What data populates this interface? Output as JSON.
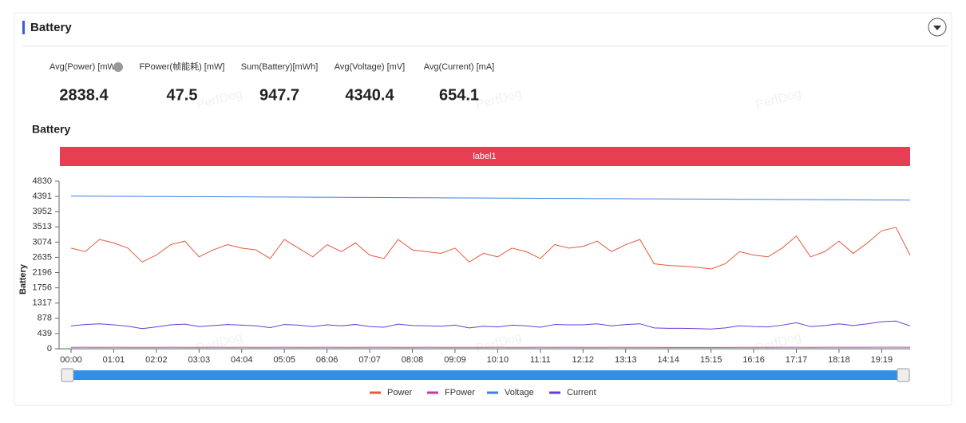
{
  "header": {
    "title": "Battery"
  },
  "stats": [
    {
      "label": "Avg(Power) [mW]",
      "value": "2838.4"
    },
    {
      "label": "FPower(帧能耗) [mW]",
      "value": "47.5"
    },
    {
      "label": "Sum(Battery)[mWh]",
      "value": "947.7"
    },
    {
      "label": "Avg(Voltage) [mV]",
      "value": "4340.4"
    },
    {
      "label": "Avg(Current) [mA]",
      "value": "654.1"
    }
  ],
  "watermark": "PerfDog",
  "chart_data": {
    "type": "line",
    "title": "Battery",
    "band_label": "label1",
    "y_label": "Battery",
    "categories": [
      "00:00",
      null,
      null,
      "01:01",
      null,
      null,
      "02:02",
      null,
      null,
      "03:03",
      null,
      null,
      "04:04",
      null,
      null,
      "05:05",
      null,
      null,
      "06:06",
      null,
      null,
      "07:07",
      null,
      null,
      "08:08",
      null,
      null,
      "09:09",
      null,
      null,
      "10:10",
      null,
      null,
      "11:11",
      null,
      null,
      "12:12",
      null,
      null,
      "13:13",
      null,
      null,
      "14:14",
      null,
      null,
      "15:15",
      null,
      null,
      "16:16",
      null,
      null,
      "17:17",
      null,
      null,
      "18:18",
      null,
      null,
      "19:19",
      null,
      null
    ],
    "ylim": [
      0,
      4830
    ],
    "yticks": [
      0,
      439,
      878,
      1317,
      1756,
      2196,
      2635,
      3074,
      3513,
      3952,
      4391,
      4830
    ],
    "series": [
      {
        "name": "Power",
        "color": "#e4593b",
        "values": [
          2900,
          2800,
          3150,
          3050,
          2900,
          2500,
          2700,
          3000,
          3100,
          2650,
          2850,
          3000,
          2900,
          2850,
          2600,
          3150,
          2900,
          2650,
          3000,
          2800,
          3050,
          2700,
          2600,
          3150,
          2850,
          2800,
          2750,
          2900,
          2500,
          2750,
          2650,
          2900,
          2800,
          2600,
          3000,
          2900,
          2950,
          3100,
          2800,
          3000,
          3150,
          2450,
          2400,
          2380,
          2350,
          2300,
          2450,
          2800,
          2700,
          2650,
          2900,
          3250,
          2650,
          2800,
          3100,
          2750,
          3050,
          3400,
          3500,
          2700
        ]
      },
      {
        "name": "FPower",
        "color": "#c23aa3",
        "values": [
          40,
          42,
          41,
          43,
          40,
          39,
          41,
          42,
          40,
          41,
          43,
          40,
          42,
          41,
          40,
          43,
          41,
          40,
          42,
          41,
          40,
          42,
          43,
          41,
          40,
          42,
          41,
          40,
          39,
          41,
          42,
          40,
          41,
          42,
          40,
          43,
          41,
          40,
          42,
          41,
          40,
          39,
          38,
          38,
          37,
          37,
          38,
          40,
          41,
          40,
          42,
          44,
          41,
          42,
          43,
          42,
          44,
          46,
          47,
          42
        ]
      },
      {
        "name": "Voltage",
        "color": "#3b7fe3",
        "values": [
          4400,
          4398,
          4396,
          4394,
          4393,
          4391,
          4389,
          4387,
          4385,
          4384,
          4382,
          4380,
          4378,
          4376,
          4374,
          4372,
          4370,
          4368,
          4366,
          4364,
          4362,
          4360,
          4358,
          4356,
          4354,
          4352,
          4350,
          4348,
          4346,
          4344,
          4342,
          4340,
          4338,
          4336,
          4334,
          4332,
          4330,
          4328,
          4326,
          4324,
          4322,
          4320,
          4318,
          4316,
          4314,
          4312,
          4310,
          4308,
          4306,
          4304,
          4302,
          4300,
          4298,
          4296,
          4294,
          4292,
          4290,
          4288,
          4286,
          4284
        ]
      },
      {
        "name": "Current",
        "color": "#6a3ad8",
        "values": [
          660,
          700,
          720,
          690,
          650,
          580,
          630,
          690,
          710,
          640,
          670,
          700,
          680,
          660,
          610,
          700,
          680,
          640,
          690,
          660,
          700,
          640,
          620,
          710,
          670,
          660,
          650,
          680,
          600,
          650,
          630,
          680,
          660,
          620,
          700,
          690,
          690,
          720,
          660,
          700,
          720,
          600,
          590,
          590,
          580,
          570,
          600,
          660,
          640,
          630,
          680,
          750,
          640,
          670,
          720,
          670,
          720,
          780,
          800,
          660
        ]
      }
    ]
  }
}
